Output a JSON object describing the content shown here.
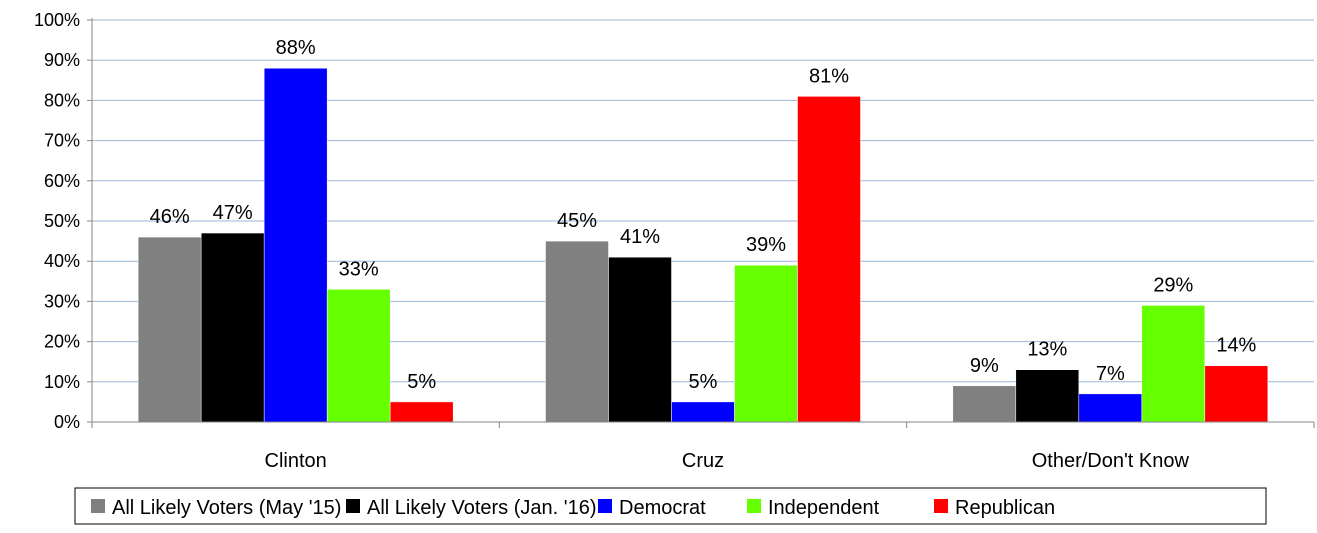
{
  "chart_data": {
    "type": "bar",
    "categories": [
      "Clinton",
      "Cruz",
      "Other/Don't Know"
    ],
    "series": [
      {
        "name": "All Likely Voters (May '15)",
        "color": "#808080",
        "values": [
          46,
          45,
          9
        ]
      },
      {
        "name": "All Likely Voters (Jan. '16)",
        "color": "#000000",
        "values": [
          47,
          41,
          13
        ]
      },
      {
        "name": "Democrat",
        "color": "#0000FF",
        "values": [
          88,
          5,
          7
        ]
      },
      {
        "name": "Independent",
        "color": "#66FF00",
        "values": [
          33,
          39,
          29
        ]
      },
      {
        "name": "Republican",
        "color": "#FF0000",
        "values": [
          5,
          81,
          14
        ]
      }
    ],
    "ylim": [
      0,
      100
    ],
    "yticks": [
      "0%",
      "10%",
      "20%",
      "30%",
      "40%",
      "50%",
      "60%",
      "70%",
      "80%",
      "90%",
      "100%"
    ],
    "value_suffix": "%",
    "grid": true,
    "legend_position": "bottom"
  }
}
